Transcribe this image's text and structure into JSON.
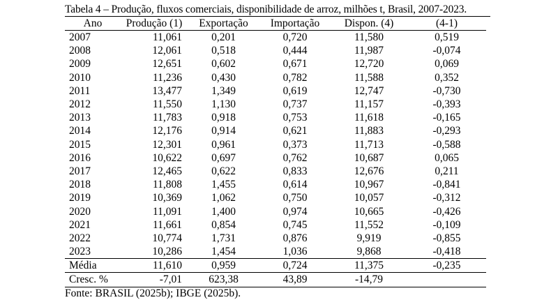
{
  "table": {
    "title": "Tabela 4 – Produção, fluxos comerciais, disponibilidade de arroz, milhões t, Brasil, 2007-2023.",
    "headers": [
      "Ano",
      "Produção (1)",
      "Exportação",
      "Importação",
      "Dispon. (4)",
      "(4-1)"
    ],
    "rows": [
      [
        "2007",
        "11,061",
        "0,201",
        "0,720",
        "11,580",
        "0,519"
      ],
      [
        "2008",
        "12,061",
        "0,518",
        "0,444",
        "11,987",
        "-0,074"
      ],
      [
        "2009",
        "12,651",
        "0,602",
        "0,671",
        "12,720",
        "0,069"
      ],
      [
        "2010",
        "11,236",
        "0,430",
        "0,782",
        "11,588",
        "0,352"
      ],
      [
        "2011",
        "13,477",
        "1,349",
        "0,619",
        "12,747",
        "-0,730"
      ],
      [
        "2012",
        "11,550",
        "1,130",
        "0,737",
        "11,157",
        "-0,393"
      ],
      [
        "2013",
        "11,783",
        "0,918",
        "0,753",
        "11,618",
        "-0,165"
      ],
      [
        "2014",
        "12,176",
        "0,914",
        "0,621",
        "11,883",
        "-0,293"
      ],
      [
        "2015",
        "12,301",
        "0,961",
        "0,373",
        "11,713",
        "-0,588"
      ],
      [
        "2016",
        "10,622",
        "0,697",
        "0,762",
        "10,687",
        "0,065"
      ],
      [
        "2017",
        "12,465",
        "0,622",
        "0,833",
        "12,676",
        "0,211"
      ],
      [
        "2018",
        "11,808",
        "1,455",
        "0,614",
        "10,967",
        "-0,841"
      ],
      [
        "2019",
        "10,369",
        "1,062",
        "0,750",
        "10,057",
        "-0,312"
      ],
      [
        "2020",
        "11,091",
        "1,400",
        "0,974",
        "10,665",
        "-0,426"
      ],
      [
        "2021",
        "11,661",
        "0,854",
        "0,745",
        "11,552",
        "-0,109"
      ],
      [
        "2022",
        "10,774",
        "1,731",
        "0,876",
        "9,919",
        "-0,855"
      ],
      [
        "2023",
        "10,286",
        "1,454",
        "1,036",
        "9,868",
        "-0,418"
      ]
    ],
    "average": [
      "Média",
      "11,610",
      "0,959",
      "0,724",
      "11,375",
      "-0,235"
    ],
    "growth": [
      "Cresc. %",
      "-7,01",
      "623,38",
      "43,89",
      "-14,79",
      ""
    ],
    "source": "Fonte: BRASIL (2025b); IBGE (2025b)."
  }
}
